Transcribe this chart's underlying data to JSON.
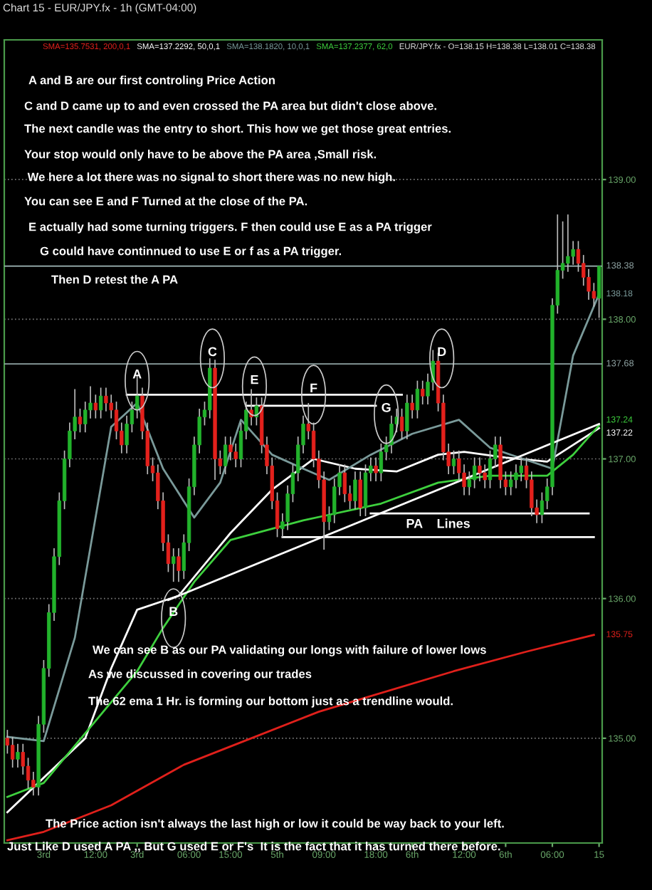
{
  "chart_data": {
    "type": "candlestick",
    "title": "Chart 15 - EUR/JPY.fx - 1h (GMT-04:00)",
    "subtitle": "EUR/JPY.fx - O=138.15 H=138.38 L=138.01 C=138.38",
    "categories": [
      null,
      null,
      null,
      null,
      null,
      null,
      null,
      "3rd",
      null,
      null,
      null,
      null,
      null,
      null,
      null,
      null,
      null,
      "12:00",
      null,
      null,
      null,
      null,
      null,
      null,
      null,
      "3rd",
      null,
      null,
      null,
      null,
      null,
      null,
      null,
      null,
      null,
      "06:00",
      null,
      null,
      null,
      null,
      null,
      null,
      null,
      "15:00",
      null,
      null,
      null,
      null,
      null,
      null,
      null,
      null,
      "5th",
      null,
      null,
      null,
      null,
      null,
      null,
      null,
      null,
      "09:00",
      null,
      null,
      null,
      null,
      null,
      null,
      null,
      null,
      null,
      "18:00",
      null,
      null,
      null,
      null,
      null,
      null,
      "6th",
      null,
      null,
      null,
      null,
      null,
      null,
      null,
      null,
      null,
      "12:00",
      null,
      null,
      null,
      null,
      null,
      null,
      null,
      "6th",
      null,
      null,
      null,
      null,
      null,
      null,
      null,
      null,
      "06:00",
      null,
      null,
      null,
      null,
      null,
      null,
      null,
      null,
      "15"
    ],
    "ohlc": [
      [
        135.0,
        135.06,
        134.89,
        134.95
      ],
      [
        134.95,
        135.01,
        134.79,
        134.85
      ],
      [
        134.85,
        134.96,
        134.79,
        134.9
      ],
      [
        134.9,
        134.96,
        134.74,
        134.8
      ],
      [
        134.8,
        134.86,
        134.64,
        134.7
      ],
      [
        134.7,
        134.76,
        134.59,
        134.65
      ],
      [
        134.65,
        135.16,
        134.59,
        135.1
      ],
      [
        135.1,
        135.56,
        135.04,
        135.5
      ],
      [
        135.5,
        135.96,
        135.44,
        135.9
      ],
      [
        135.9,
        136.36,
        135.84,
        136.3
      ],
      [
        136.3,
        136.76,
        136.24,
        136.7
      ],
      [
        136.7,
        137.06,
        136.64,
        137.0
      ],
      [
        137.0,
        137.26,
        136.94,
        137.2
      ],
      [
        137.2,
        137.5,
        137.14,
        137.3
      ],
      [
        137.3,
        137.36,
        137.19,
        137.25
      ],
      [
        137.25,
        137.41,
        137.19,
        137.35
      ],
      [
        137.35,
        137.52,
        137.29,
        137.4
      ],
      [
        137.4,
        137.46,
        137.29,
        137.35
      ],
      [
        137.35,
        137.51,
        137.29,
        137.45
      ],
      [
        137.45,
        137.51,
        137.34,
        137.4
      ],
      [
        137.4,
        137.46,
        137.29,
        137.35
      ],
      [
        137.35,
        137.41,
        137.14,
        137.2
      ],
      [
        137.2,
        137.26,
        137.04,
        137.1
      ],
      [
        137.1,
        137.31,
        137.04,
        137.25
      ],
      [
        137.25,
        137.41,
        137.19,
        137.35
      ],
      [
        137.35,
        137.6,
        137.29,
        137.45
      ],
      [
        137.45,
        137.51,
        137.14,
        137.2
      ],
      [
        137.2,
        137.26,
        136.89,
        136.95
      ],
      [
        136.95,
        137.01,
        136.84,
        136.9
      ],
      [
        136.9,
        136.96,
        136.64,
        136.7
      ],
      [
        136.7,
        136.76,
        136.34,
        136.4
      ],
      [
        136.4,
        136.46,
        136.19,
        136.25
      ],
      [
        136.25,
        136.36,
        136.12,
        136.3
      ],
      [
        136.3,
        136.36,
        136.12,
        136.2
      ],
      [
        136.2,
        136.46,
        136.14,
        136.4
      ],
      [
        136.4,
        136.86,
        136.34,
        136.8
      ],
      [
        136.8,
        137.16,
        136.74,
        137.1
      ],
      [
        137.1,
        137.36,
        137.04,
        137.3
      ],
      [
        137.3,
        137.41,
        137.24,
        137.35
      ],
      [
        137.35,
        137.72,
        137.29,
        137.65
      ],
      [
        137.65,
        137.71,
        136.85,
        137.0
      ],
      [
        137.0,
        137.06,
        136.89,
        136.95
      ],
      [
        136.95,
        137.16,
        136.89,
        137.1
      ],
      [
        137.1,
        137.16,
        136.99,
        137.05
      ],
      [
        137.05,
        137.11,
        136.94,
        137.0
      ],
      [
        137.0,
        137.26,
        136.94,
        137.2
      ],
      [
        137.2,
        137.41,
        137.14,
        137.35
      ],
      [
        137.35,
        137.5,
        137.24,
        137.3
      ],
      [
        137.3,
        137.44,
        137.24,
        137.38
      ],
      [
        137.38,
        137.44,
        137.04,
        137.1
      ],
      [
        137.1,
        137.16,
        136.89,
        136.95
      ],
      [
        136.95,
        137.01,
        136.64,
        136.7
      ],
      [
        136.7,
        136.76,
        136.44,
        136.5
      ],
      [
        136.5,
        136.61,
        136.44,
        136.55
      ],
      [
        136.55,
        136.81,
        136.49,
        136.75
      ],
      [
        136.75,
        136.96,
        136.69,
        136.9
      ],
      [
        136.9,
        137.16,
        136.84,
        137.1
      ],
      [
        137.1,
        137.31,
        137.04,
        137.25
      ],
      [
        137.25,
        137.4,
        137.14,
        137.2
      ],
      [
        137.2,
        137.26,
        136.94,
        137.0
      ],
      [
        137.0,
        137.06,
        136.79,
        136.85
      ],
      [
        136.85,
        136.91,
        136.35,
        136.55
      ],
      [
        136.55,
        136.66,
        136.49,
        136.6
      ],
      [
        136.6,
        136.86,
        136.54,
        136.8
      ],
      [
        136.8,
        136.96,
        136.74,
        136.9
      ],
      [
        136.9,
        136.96,
        136.69,
        136.75
      ],
      [
        136.75,
        136.81,
        136.64,
        136.7
      ],
      [
        136.7,
        136.91,
        136.64,
        136.85
      ],
      [
        136.85,
        136.91,
        136.59,
        136.65
      ],
      [
        136.65,
        136.96,
        136.59,
        136.9
      ],
      [
        136.9,
        137.01,
        136.84,
        136.95
      ],
      [
        136.95,
        137.01,
        136.84,
        136.9
      ],
      [
        136.9,
        137.11,
        136.84,
        137.05
      ],
      [
        137.05,
        137.16,
        136.99,
        137.1
      ],
      [
        137.1,
        137.31,
        137.04,
        137.25
      ],
      [
        137.25,
        137.36,
        137.19,
        137.3
      ],
      [
        137.3,
        137.36,
        137.14,
        137.2
      ],
      [
        137.2,
        137.46,
        137.14,
        137.4
      ],
      [
        137.4,
        137.46,
        137.29,
        137.35
      ],
      [
        137.35,
        137.56,
        137.29,
        137.5
      ],
      [
        137.5,
        137.56,
        137.39,
        137.45
      ],
      [
        137.45,
        137.61,
        137.39,
        137.55
      ],
      [
        137.55,
        137.78,
        137.49,
        137.7
      ],
      [
        137.7,
        137.76,
        137.34,
        137.4
      ],
      [
        137.4,
        137.46,
        136.99,
        137.05
      ],
      [
        137.05,
        137.11,
        136.89,
        136.95
      ],
      [
        136.95,
        137.06,
        136.89,
        137.0
      ],
      [
        137.0,
        137.06,
        136.84,
        136.9
      ],
      [
        136.9,
        136.96,
        136.74,
        136.8
      ],
      [
        136.8,
        136.91,
        136.74,
        136.85
      ],
      [
        136.85,
        137.01,
        136.79,
        136.95
      ],
      [
        136.95,
        137.01,
        136.84,
        136.9
      ],
      [
        136.9,
        136.96,
        136.79,
        136.85
      ],
      [
        136.85,
        137.06,
        136.79,
        137.0
      ],
      [
        137.0,
        137.16,
        136.94,
        137.1
      ],
      [
        137.1,
        137.16,
        136.79,
        136.85
      ],
      [
        136.85,
        136.91,
        136.74,
        136.8
      ],
      [
        136.8,
        136.91,
        136.74,
        136.85
      ],
      [
        136.85,
        136.96,
        136.79,
        136.9
      ],
      [
        136.9,
        137.01,
        136.84,
        136.95
      ],
      [
        136.95,
        137.01,
        136.79,
        136.85
      ],
      [
        136.85,
        136.91,
        136.59,
        136.65
      ],
      [
        136.65,
        136.71,
        136.54,
        136.6
      ],
      [
        136.6,
        136.76,
        136.54,
        136.7
      ],
      [
        136.7,
        136.86,
        136.64,
        136.8
      ],
      [
        136.8,
        138.15,
        136.74,
        138.1
      ],
      [
        138.1,
        138.75,
        138.04,
        138.35
      ],
      [
        138.35,
        138.7,
        138.29,
        138.4
      ],
      [
        138.4,
        138.75,
        138.34,
        138.45
      ],
      [
        138.45,
        138.56,
        138.39,
        138.5
      ],
      [
        138.5,
        138.56,
        138.34,
        138.4
      ],
      [
        138.4,
        138.46,
        138.24,
        138.3
      ],
      [
        138.3,
        138.36,
        138.14,
        138.2
      ],
      [
        138.2,
        138.26,
        138.09,
        138.15
      ],
      [
        138.15,
        138.38,
        138.01,
        138.38
      ]
    ],
    "colors": [
      "#e3211c",
      "#e3211c",
      "#22b22b",
      "#e3211c",
      "#e3211c",
      "#e3211c",
      "#22b22b",
      "#22b22b",
      "#22b22b",
      "#22b22b",
      "#22b22b",
      "#22b22b",
      "#22b22b",
      "#22b22b",
      "#e3211c",
      "#22b22b",
      "#22b22b",
      "#e3211c",
      "#22b22b",
      "#e3211c",
      "#e3211c",
      "#e3211c",
      "#e3211c",
      "#22b22b",
      "#22b22b",
      "#22b22b",
      "#e3211c",
      "#e3211c",
      "#e3211c",
      "#e3211c",
      "#e3211c",
      "#e3211c",
      "#22b22b",
      "#e3211c",
      "#22b22b",
      "#22b22b",
      "#22b22b",
      "#22b22b",
      "#22b22b",
      "#22b22b",
      "#e3211c",
      "#e3211c",
      "#22b22b",
      "#e3211c",
      "#e3211c",
      "#22b22b",
      "#22b22b",
      "#e3211c",
      "#22b22b",
      "#e3211c",
      "#e3211c",
      "#e3211c",
      "#e3211c",
      "#22b22b",
      "#22b22b",
      "#22b22b",
      "#22b22b",
      "#22b22b",
      "#e3211c",
      "#e3211c",
      "#e3211c",
      "#e3211c",
      "#22b22b",
      "#22b22b",
      "#22b22b",
      "#e3211c",
      "#e3211c",
      "#22b22b",
      "#e3211c",
      "#22b22b",
      "#22b22b",
      "#e3211c",
      "#22b22b",
      "#22b22b",
      "#22b22b",
      "#22b22b",
      "#e3211c",
      "#22b22b",
      "#e3211c",
      "#22b22b",
      "#e3211c",
      "#22b22b",
      "#22b22b",
      "#e3211c",
      "#e3211c",
      "#e3211c",
      "#22b22b",
      "#e3211c",
      "#e3211c",
      "#22b22b",
      "#22b22b",
      "#e3211c",
      "#e3211c",
      "#22b22b",
      "#22b22b",
      "#e3211c",
      "#e3211c",
      "#22b22b",
      "#22b22b",
      "#22b22b",
      "#e3211c",
      "#e3211c",
      "#e3211c",
      "#22b22b",
      "#22b22b",
      "#22b22b",
      "#22b22b",
      "#22b22b",
      "#22b22b",
      "#22b22b",
      "#e3211c",
      "#e3211c",
      "#e3211c",
      "#e3211c",
      "#22b22b"
    ],
    "ylim": [
      134.25,
      140.0
    ],
    "yticks": [
      {
        "value": 135,
        "label": "135.00"
      },
      {
        "value": 136,
        "label": "136.00"
      },
      {
        "value": 137,
        "label": "137.00"
      },
      {
        "value": 138,
        "label": "138.00"
      },
      {
        "value": 139,
        "label": "139.00"
      }
    ],
    "grid": "y",
    "series": [
      {
        "type": "line",
        "name": "SMA=135.7531, 200,0,1",
        "color": "#e0201b",
        "values": [
          134.27,
          null,
          null,
          null,
          null,
          null,
          null,
          134.33,
          null,
          null,
          null,
          null,
          null,
          null,
          null,
          null,
          null,
          null,
          null,
          null,
          134.52,
          null,
          null,
          null,
          null,
          null,
          null,
          null,
          null,
          null,
          null,
          null,
          null,
          null,
          134.81,
          null,
          null,
          null,
          null,
          null,
          null,
          null,
          null,
          null,
          null,
          null,
          null,
          135.0,
          null,
          null,
          null,
          null,
          null,
          null,
          null,
          null,
          null,
          null,
          null,
          null,
          135.19,
          null,
          null,
          null,
          null,
          null,
          null,
          null,
          null,
          null,
          null,
          null,
          null,
          null,
          null,
          null,
          null,
          null,
          null,
          null,
          null,
          null,
          null,
          null,
          null,
          null,
          135.48,
          null,
          null,
          null,
          null,
          null,
          null,
          null,
          null,
          null,
          null,
          null,
          null,
          null,
          135.62,
          null,
          null,
          null,
          null,
          null,
          null,
          null,
          null,
          null,
          null,
          null,
          null,
          135.74,
          null
        ]
      },
      {
        "type": "line",
        "name": "SMA=137.2292, 50,0,1",
        "color": "#ffffff",
        "values": [
          134.47,
          null,
          null,
          null,
          null,
          null,
          null,
          null,
          null,
          null,
          null,
          null,
          null,
          null,
          null,
          135.0,
          null,
          null,
          null,
          null,
          135.5,
          null,
          null,
          null,
          null,
          135.92,
          null,
          null,
          null,
          null,
          null,
          null,
          null,
          136.02,
          null,
          null,
          null,
          null,
          null,
          null,
          null,
          null,
          null,
          136.47,
          null,
          null,
          null,
          null,
          null,
          null,
          null,
          136.78,
          null,
          null,
          null,
          null,
          null,
          null,
          null,
          137.0,
          null,
          null,
          null,
          null,
          null,
          null,
          null,
          136.93,
          null,
          null,
          null,
          null,
          null,
          null,
          null,
          136.91,
          null,
          null,
          null,
          null,
          null,
          null,
          null,
          137.03,
          null,
          null,
          null,
          null,
          137.05,
          null,
          null,
          null,
          null,
          null,
          null,
          null,
          137.01,
          null,
          null,
          null,
          null,
          null,
          null,
          null,
          136.98,
          null,
          null,
          null,
          null,
          null,
          null,
          null,
          null,
          null,
          137.22
        ]
      },
      {
        "type": "line",
        "name": "SMA=138.1820, 10,0,1",
        "color": "#7a9a9a",
        "values": [
          135.01,
          null,
          null,
          null,
          null,
          null,
          null,
          134.98,
          null,
          null,
          null,
          null,
          null,
          135.72,
          null,
          null,
          null,
          null,
          null,
          null,
          137.23,
          null,
          null,
          null,
          null,
          137.4,
          null,
          null,
          null,
          null,
          136.93,
          null,
          null,
          null,
          null,
          null,
          136.58,
          null,
          null,
          null,
          null,
          136.83,
          null,
          null,
          null,
          137.28,
          null,
          null,
          null,
          null,
          null,
          137.03,
          null,
          null,
          null,
          null,
          null,
          136.93,
          null,
          null,
          null,
          null,
          136.85,
          null,
          null,
          null,
          null,
          null,
          null,
          null,
          137.03,
          null,
          null,
          null,
          null,
          null,
          null,
          null,
          137.18,
          null,
          null,
          null,
          null,
          null,
          null,
          null,
          null,
          137.28,
          null,
          null,
          null,
          null,
          null,
          137.08,
          null,
          null,
          null,
          null,
          null,
          null,
          null,
          136.98,
          null,
          null,
          null,
          136.93,
          null,
          null,
          null,
          137.74,
          null,
          null,
          null,
          null,
          138.18
        ]
      },
      {
        "type": "line",
        "name": "SMA=137.2377, 62,0",
        "color": "#3ed03e",
        "values": [
          134.58,
          null,
          null,
          null,
          null,
          null,
          null,
          134.68,
          null,
          null,
          null,
          null,
          null,
          null,
          null,
          null,
          135.08,
          null,
          null,
          null,
          null,
          null,
          null,
          null,
          null,
          135.48,
          null,
          null,
          null,
          null,
          135.79,
          null,
          null,
          null,
          null,
          null,
          136.12,
          null,
          null,
          null,
          null,
          null,
          null,
          136.42,
          null,
          null,
          null,
          null,
          null,
          null,
          null,
          136.5,
          null,
          null,
          null,
          null,
          null,
          136.56,
          null,
          null,
          null,
          null,
          136.6,
          null,
          null,
          null,
          null,
          null,
          null,
          null,
          null,
          null,
          136.68,
          null,
          null,
          null,
          null,
          null,
          null,
          null,
          null,
          null,
          null,
          136.83,
          null,
          null,
          null,
          null,
          null,
          null,
          null,
          null,
          null,
          136.88,
          null,
          null,
          null,
          null,
          null,
          null,
          null,
          null,
          null,
          null,
          136.88,
          null,
          null,
          null,
          null,
          137.03,
          null,
          null,
          null,
          null,
          137.24
        ]
      },
      {
        "type": "line",
        "color": "#ffffff",
        "values": [
          null,
          null,
          null,
          null,
          null,
          null,
          null,
          null,
          null,
          null,
          null,
          null,
          null,
          null,
          null,
          null,
          null,
          null,
          null,
          null,
          null,
          null,
          null,
          null,
          null,
          null,
          null,
          null,
          null,
          null,
          null,
          135.99,
          null,
          null,
          null,
          null,
          null,
          null,
          null,
          null,
          null,
          null,
          null,
          null,
          null,
          null,
          null,
          null,
          null,
          null,
          null,
          null,
          null,
          null,
          null,
          null,
          null,
          null,
          null,
          null,
          null,
          null,
          null,
          null,
          null,
          null,
          null,
          null,
          null,
          null,
          null,
          null,
          null,
          null,
          null,
          null,
          null,
          null,
          null,
          null,
          null,
          null,
          null,
          null,
          null,
          null,
          null,
          null,
          null,
          null,
          null,
          null,
          null,
          null,
          null,
          null,
          null,
          null,
          null,
          null,
          null,
          null,
          null,
          null,
          null,
          null,
          null,
          null,
          null,
          null,
          null,
          null,
          null,
          null,
          137.25
        ]
      },
      {
        "type": "line",
        "color": "#ffffff",
        "values": [
          null,
          null,
          null,
          null,
          null,
          null,
          null,
          null,
          null,
          null,
          null,
          null,
          null,
          null,
          null,
          null,
          null,
          null,
          null,
          null,
          null,
          null,
          null,
          137.46,
          null,
          null,
          null,
          null,
          null,
          null,
          null,
          null,
          null,
          null,
          null,
          null,
          null,
          null,
          null,
          null,
          null,
          null,
          null,
          null,
          null,
          null,
          null,
          null,
          null,
          null,
          null,
          null,
          null,
          null,
          null,
          null,
          null,
          null,
          null,
          null,
          null,
          null,
          null,
          null,
          null,
          null,
          null,
          null,
          null,
          null,
          null,
          null,
          null,
          null,
          null,
          null,
          137.46,
          null,
          null,
          null,
          null,
          null,
          null,
          null,
          null,
          null,
          null,
          null,
          null,
          null,
          null,
          null,
          null,
          null,
          null,
          null,
          null,
          null,
          null,
          null,
          null,
          null,
          null,
          null,
          null,
          null,
          null,
          null,
          null,
          null,
          null,
          null,
          null,
          null,
          null
        ]
      },
      {
        "type": "line",
        "color": "#ffffff",
        "values": [
          null,
          null,
          null,
          null,
          null,
          null,
          null,
          null,
          null,
          null,
          null,
          null,
          null,
          null,
          null,
          null,
          null,
          null,
          null,
          null,
          null,
          null,
          null,
          null,
          null,
          null,
          null,
          null,
          null,
          null,
          null,
          null,
          null,
          null,
          null,
          null,
          null,
          null,
          null,
          null,
          null,
          null,
          null,
          null,
          null,
          null,
          137.38,
          null,
          null,
          null,
          null,
          null,
          null,
          null,
          null,
          null,
          null,
          null,
          null,
          null,
          null,
          null,
          null,
          null,
          null,
          null,
          null,
          null,
          null,
          null,
          null,
          137.38,
          null,
          null,
          null,
          null,
          null,
          null,
          null,
          null,
          null,
          null,
          null,
          null,
          null,
          null,
          null,
          null,
          null,
          null,
          null,
          null,
          null,
          null,
          null,
          null,
          null,
          null,
          null,
          null,
          null,
          null,
          null,
          null,
          null,
          null,
          null,
          null,
          null,
          null,
          null,
          null,
          null,
          null,
          null
        ]
      },
      {
        "type": "line",
        "color": "#ffffff",
        "values": [
          null,
          null,
          null,
          null,
          null,
          null,
          null,
          null,
          null,
          null,
          null,
          null,
          null,
          null,
          null,
          null,
          null,
          null,
          null,
          null,
          null,
          null,
          null,
          null,
          null,
          null,
          null,
          null,
          null,
          null,
          null,
          null,
          null,
          null,
          null,
          null,
          null,
          null,
          null,
          null,
          null,
          null,
          null,
          null,
          null,
          null,
          null,
          null,
          null,
          null,
          null,
          null,
          null,
          null,
          null,
          null,
          null,
          null,
          null,
          null,
          null,
          null,
          null,
          null,
          null,
          null,
          null,
          null,
          null,
          null,
          136.61,
          null,
          null,
          null,
          null,
          null,
          null,
          null,
          null,
          null,
          null,
          null,
          null,
          null,
          null,
          null,
          null,
          null,
          null,
          null,
          null,
          null,
          null,
          null,
          null,
          null,
          null,
          null,
          null,
          null,
          null,
          null,
          null,
          null,
          null,
          null,
          null,
          null,
          null,
          null,
          null,
          null,
          136.61,
          null,
          null
        ]
      },
      {
        "type": "line",
        "color": "#ffffff",
        "values": [
          null,
          null,
          null,
          null,
          null,
          null,
          null,
          null,
          null,
          null,
          null,
          null,
          null,
          null,
          null,
          null,
          null,
          null,
          null,
          null,
          null,
          null,
          null,
          null,
          null,
          null,
          null,
          null,
          null,
          null,
          null,
          null,
          null,
          null,
          null,
          null,
          null,
          null,
          null,
          null,
          null,
          null,
          null,
          null,
          null,
          null,
          null,
          null,
          null,
          null,
          null,
          null,
          null,
          136.44,
          null,
          null,
          null,
          null,
          null,
          null,
          null,
          null,
          null,
          null,
          null,
          null,
          null,
          null,
          null,
          null,
          null,
          null,
          null,
          null,
          null,
          null,
          null,
          null,
          null,
          null,
          null,
          null,
          null,
          null,
          null,
          null,
          null,
          null,
          null,
          null,
          null,
          null,
          null,
          null,
          null,
          null,
          null,
          null,
          null,
          null,
          null,
          null,
          null,
          null,
          null,
          null,
          null,
          null,
          null,
          null,
          null,
          null,
          null,
          136.44,
          null
        ]
      }
    ],
    "ref_lines": [
      {
        "axis": "y",
        "value": 138.38,
        "label": "138.38",
        "color": "#8fa3a3"
      },
      {
        "axis": "y",
        "value": 137.68,
        "label": "137.68",
        "color": "#8fa3a3"
      }
    ],
    "annotations": [
      "A",
      "B",
      "C",
      "E",
      "F",
      "G",
      "D",
      "PA    Lines",
      "137.24",
      "137.22",
      "138.18",
      "135.75",
      "A and B are our first controling Price Action",
      "C and D came up to and even crossed the PA area but didn't close above.",
      "The next candle was the entry to short. This how we get those great entries.",
      "Your stop would only have to be above the PA area ,Small risk.",
      " We here a lot there was no signal to short there was no new high.",
      "You can see E and F Turned at the close of the PA.",
      "E actually had some turning triggers. F then could use E as a PA trigger",
      "G could have continnued to use E or f as a PA trigger.",
      "Then D retest the A PA",
      "We can see B as our PA validating our longs with failure of lower lows",
      "As we discussed in covering our trades",
      "The 62 ema 1 Hr. is forming our bottom just as a trendline would.",
      "The Price action isn't always the last high or low it could be way back to your left.",
      "Just Like D used A PA ,, But G used E or F's  It is the fact that it has turned there before."
    ]
  }
}
